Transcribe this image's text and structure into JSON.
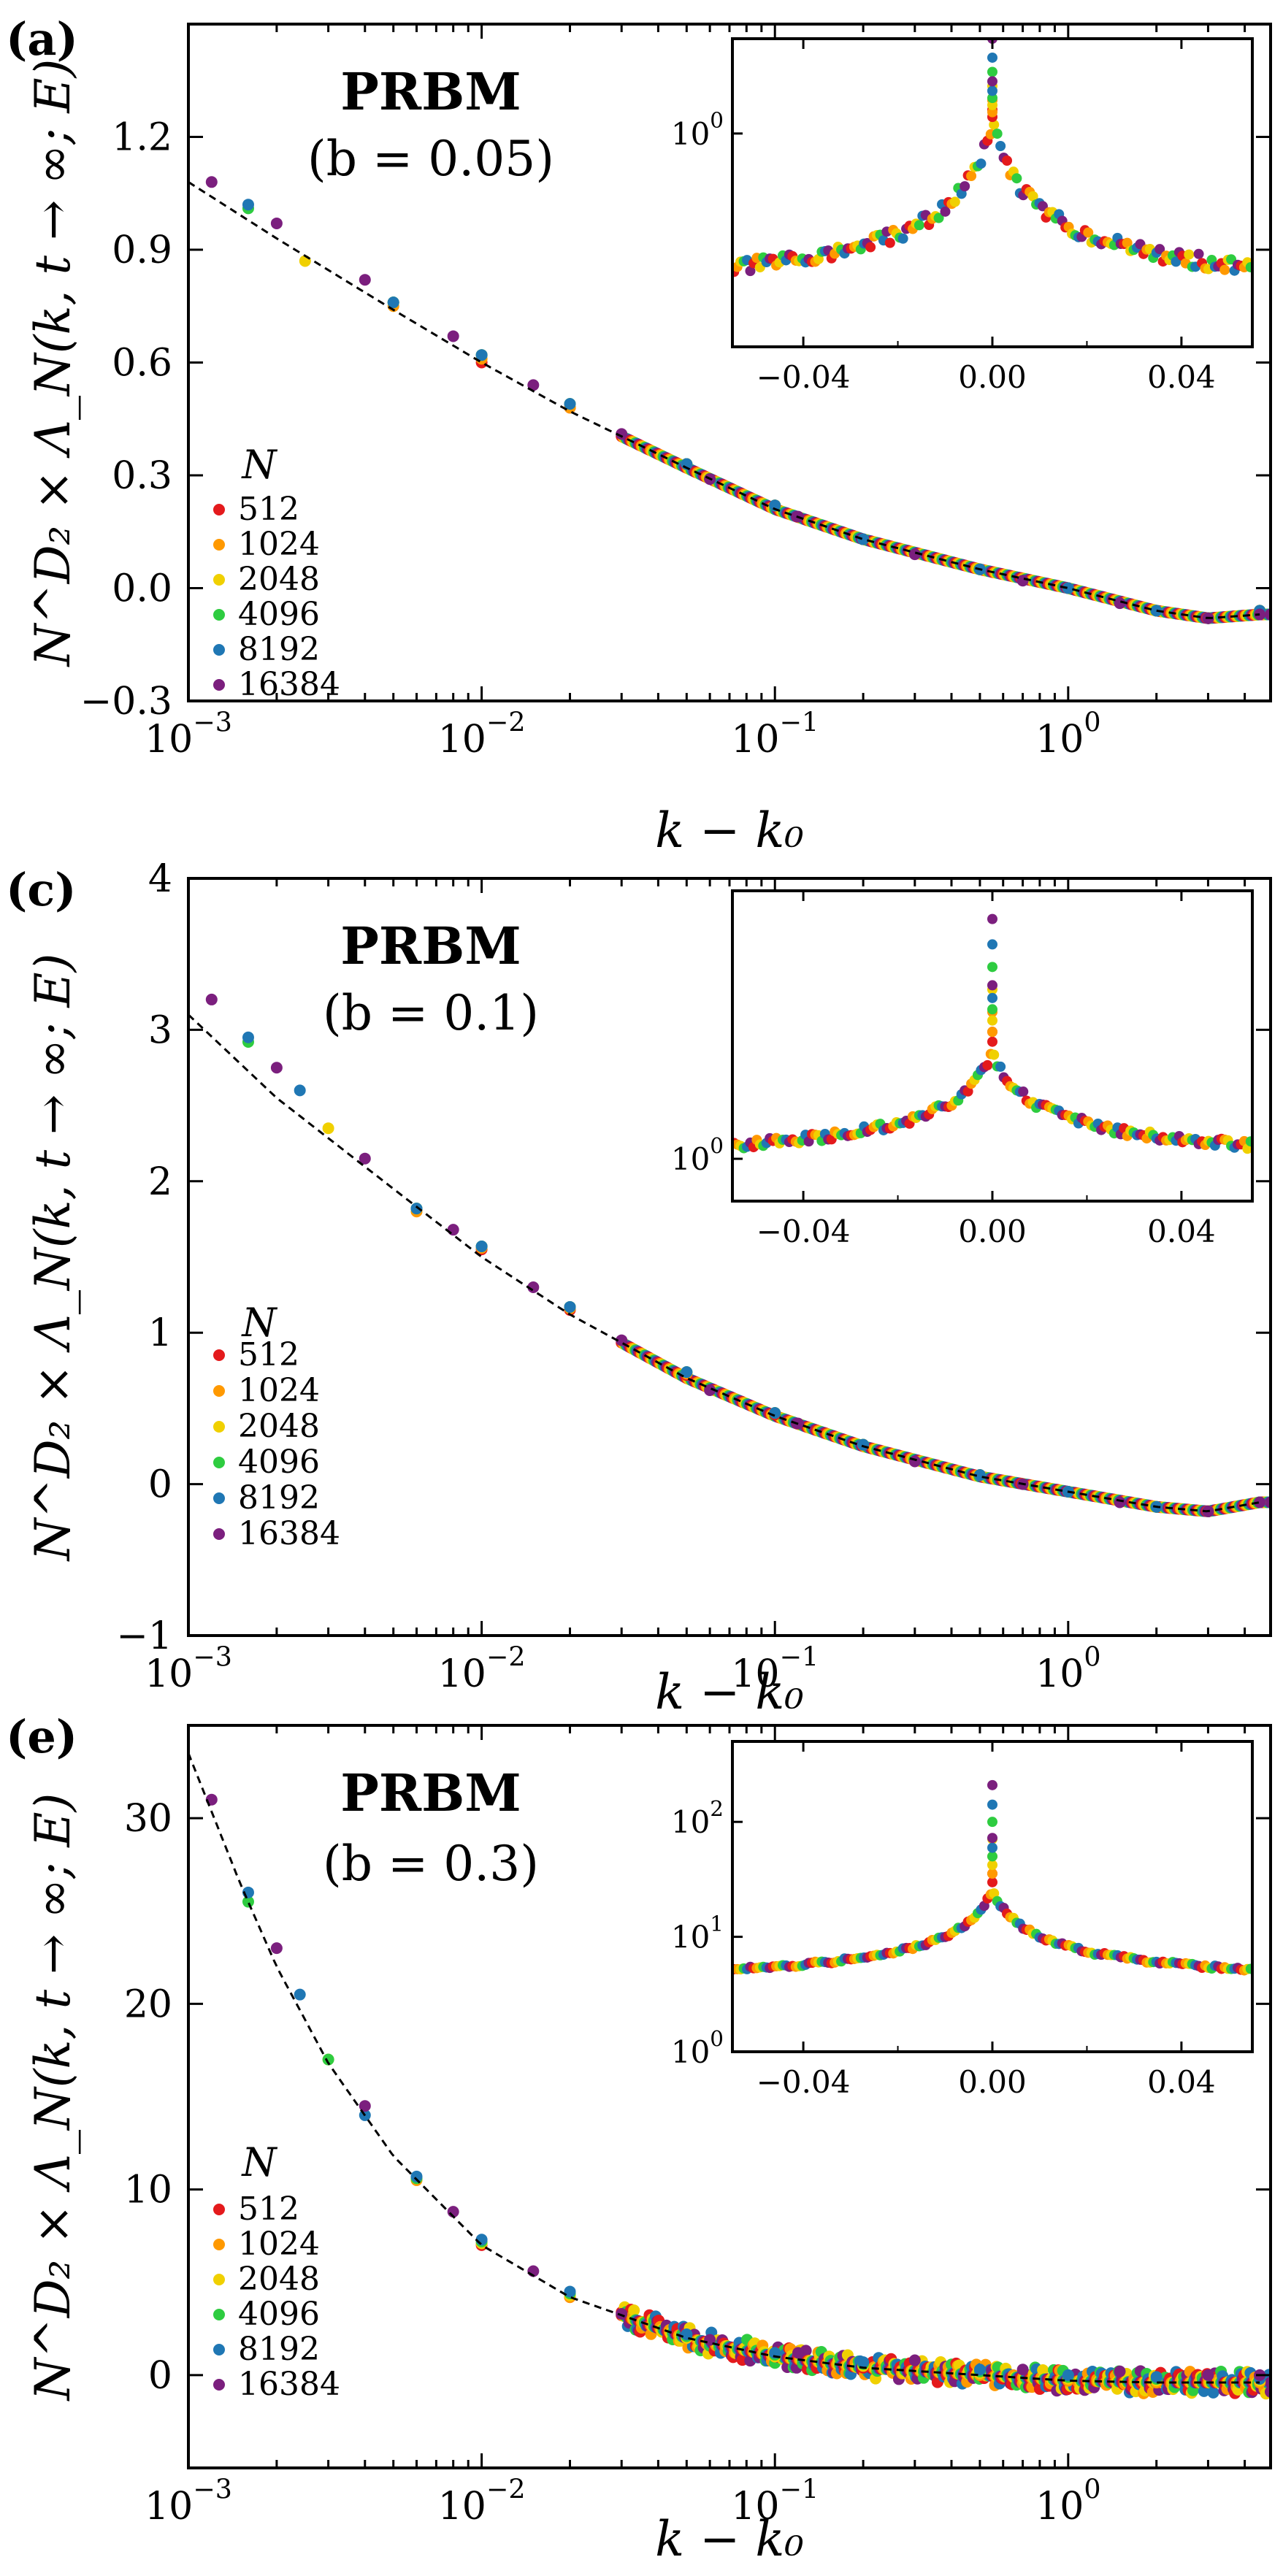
{
  "chart_data": [
    {
      "type": "scatter",
      "panel_label": "(a)",
      "title": "PRBM",
      "subtitle": "(b =  0.05)",
      "xlabel": "k − k₀",
      "ylabel": "N^D₂ × Λ_N(k, t → ∞; E)",
      "x_scale": "log",
      "xlim": [
        0.001,
        4.9
      ],
      "ylim": [
        -0.3,
        1.5
      ],
      "y_ticks": [
        "−0.3",
        "0.0",
        "0.3",
        "0.6",
        "0.9",
        "1.2"
      ],
      "y_tick_values": [
        -0.3,
        0.0,
        0.3,
        0.6,
        0.9,
        1.2
      ],
      "x_ticks": [
        "10",
        "10",
        "10",
        "10"
      ],
      "x_tick_exponents": [
        "−3",
        "−2",
        "−1",
        "0"
      ],
      "x_tick_values": [
        0.001,
        0.01,
        0.1,
        1
      ],
      "legend_title": "N",
      "legend_placement": "lower-left",
      "reference_curve": {
        "style": "dashed",
        "x": [
          0.001,
          0.002,
          0.005,
          0.01,
          0.02,
          0.05,
          0.1,
          0.2,
          0.5,
          1,
          2,
          3,
          4.5
        ],
        "y": [
          1.08,
          0.93,
          0.74,
          0.6,
          0.47,
          0.32,
          0.21,
          0.13,
          0.05,
          0.0,
          -0.06,
          -0.08,
          -0.07
        ]
      },
      "series": [
        {
          "name": "512",
          "color": "#e41a1c",
          "x": [
            0.01,
            0.02,
            0.05,
            0.1,
            0.2,
            0.5,
            1,
            2,
            3,
            4.5
          ],
          "y": [
            0.6,
            0.48,
            0.33,
            0.22,
            0.13,
            0.05,
            0.0,
            -0.06,
            -0.08,
            -0.06
          ]
        },
        {
          "name": "1024",
          "color": "#ff9900",
          "x": [
            0.005,
            0.01,
            0.02,
            0.05,
            0.1,
            0.2,
            0.5,
            1,
            2,
            3,
            4.5
          ],
          "y": [
            0.75,
            0.61,
            0.48,
            0.33,
            0.22,
            0.13,
            0.05,
            0.0,
            -0.06,
            -0.08,
            -0.06
          ]
        },
        {
          "name": "2048",
          "color": "#f0d000",
          "x": [
            0.0025,
            0.005,
            0.01,
            0.02,
            0.05,
            0.1,
            0.2,
            0.5,
            1,
            2,
            3,
            4.5
          ],
          "y": [
            0.87,
            0.76,
            0.62,
            0.49,
            0.33,
            0.22,
            0.13,
            0.05,
            0.0,
            -0.06,
            -0.08,
            -0.06
          ]
        },
        {
          "name": "4096",
          "color": "#2ecc40",
          "x": [
            0.0016,
            0.005,
            0.01,
            0.02,
            0.05,
            0.1,
            0.2,
            0.5,
            1,
            2,
            3,
            4.5
          ],
          "y": [
            1.01,
            0.76,
            0.62,
            0.49,
            0.33,
            0.22,
            0.13,
            0.05,
            0.0,
            -0.06,
            -0.08,
            -0.06
          ]
        },
        {
          "name": "8192",
          "color": "#1f77b4",
          "x": [
            0.0016,
            0.005,
            0.01,
            0.02,
            0.05,
            0.1,
            0.2,
            0.5,
            1,
            2,
            3,
            4.5
          ],
          "y": [
            1.02,
            0.76,
            0.62,
            0.49,
            0.33,
            0.22,
            0.13,
            0.05,
            0.0,
            -0.06,
            -0.08,
            -0.06
          ]
        },
        {
          "name": "16384",
          "color": "#7b1f7e",
          "x": [
            0.0012,
            0.002,
            0.004,
            0.008,
            0.015,
            0.03,
            0.06,
            0.12,
            0.3,
            0.7,
            1.5,
            3,
            4.5
          ],
          "y": [
            1.08,
            0.97,
            0.82,
            0.67,
            0.54,
            0.41,
            0.29,
            0.19,
            0.09,
            0.02,
            -0.04,
            -0.08,
            -0.07
          ]
        }
      ],
      "inset": {
        "type": "scatter",
        "y_scale": "log",
        "xlim": [
          -0.055,
          0.055
        ],
        "x_ticks": [
          "−0.04",
          "0.00",
          "0.04"
        ],
        "x_tick_values": [
          -0.04,
          0.0,
          0.04
        ],
        "y_ticks": [
          "10"
        ],
        "y_tick_exponents": [
          "0"
        ],
        "y_tick_values": [
          1
        ],
        "ylim_log10": [
          -0.45,
          0.2
        ],
        "baseline_log10": -0.4,
        "cusp_log10": 0.02,
        "cusp_width": 0.006,
        "peak_log10": [
          0.05,
          0.07,
          0.1,
          0.13,
          0.16,
          0.2
        ]
      }
    },
    {
      "type": "scatter",
      "panel_label": "(c)",
      "title": "PRBM",
      "subtitle": "(b =  0.1)",
      "xlabel": "k − k₀",
      "ylabel": "N^D₂ × Λ_N(k, t → ∞; E)",
      "x_scale": "log",
      "xlim": [
        0.001,
        4.9
      ],
      "ylim": [
        -1,
        4
      ],
      "y_ticks": [
        "−1",
        "0",
        "1",
        "2",
        "3",
        "4"
      ],
      "y_tick_values": [
        -1,
        0,
        1,
        2,
        3,
        4
      ],
      "x_ticks": [
        "10",
        "10",
        "10",
        "10"
      ],
      "x_tick_exponents": [
        "−3",
        "−2",
        "−1",
        "0"
      ],
      "x_tick_values": [
        0.001,
        0.01,
        0.1,
        1
      ],
      "legend_title": "N",
      "legend_placement": "lower-left",
      "reference_curve": {
        "style": "dashed",
        "x": [
          0.001,
          0.002,
          0.005,
          0.01,
          0.02,
          0.05,
          0.1,
          0.2,
          0.5,
          1,
          2,
          3,
          4.5
        ],
        "y": [
          3.1,
          2.55,
          1.95,
          1.5,
          1.12,
          0.7,
          0.45,
          0.25,
          0.05,
          -0.05,
          -0.15,
          -0.18,
          -0.12
        ]
      },
      "series": [
        {
          "name": "512",
          "color": "#e41a1c",
          "x": [
            0.01,
            0.02,
            0.05,
            0.1,
            0.2,
            0.5,
            1,
            2,
            3,
            4.5
          ],
          "y": [
            1.55,
            1.15,
            0.72,
            0.46,
            0.26,
            0.06,
            -0.05,
            -0.15,
            -0.18,
            -0.12
          ]
        },
        {
          "name": "1024",
          "color": "#ff9900",
          "x": [
            0.006,
            0.01,
            0.02,
            0.05,
            0.1,
            0.2,
            0.5,
            1,
            2,
            3,
            4.5
          ],
          "y": [
            1.8,
            1.56,
            1.16,
            0.73,
            0.47,
            0.26,
            0.06,
            -0.05,
            -0.15,
            -0.18,
            -0.12
          ]
        },
        {
          "name": "2048",
          "color": "#f0d000",
          "x": [
            0.003,
            0.006,
            0.01,
            0.02,
            0.05,
            0.1,
            0.2,
            0.5,
            1,
            2,
            3,
            4.5
          ],
          "y": [
            2.35,
            1.82,
            1.57,
            1.17,
            0.74,
            0.47,
            0.26,
            0.06,
            -0.05,
            -0.15,
            -0.18,
            -0.12
          ]
        },
        {
          "name": "4096",
          "color": "#2ecc40",
          "x": [
            0.0016,
            0.006,
            0.01,
            0.02,
            0.05,
            0.1,
            0.2,
            0.5,
            1,
            2,
            3,
            4.5
          ],
          "y": [
            2.92,
            1.82,
            1.57,
            1.17,
            0.74,
            0.47,
            0.26,
            0.06,
            -0.05,
            -0.15,
            -0.18,
            -0.12
          ]
        },
        {
          "name": "8192",
          "color": "#1f77b4",
          "x": [
            0.0016,
            0.0024,
            0.006,
            0.01,
            0.02,
            0.05,
            0.1,
            0.2,
            0.5,
            1,
            2,
            3,
            4.5
          ],
          "y": [
            2.95,
            2.6,
            1.82,
            1.57,
            1.17,
            0.74,
            0.47,
            0.26,
            0.06,
            -0.05,
            -0.15,
            -0.18,
            -0.12
          ]
        },
        {
          "name": "16384",
          "color": "#7b1f7e",
          "x": [
            0.0012,
            0.002,
            0.004,
            0.008,
            0.015,
            0.03,
            0.06,
            0.12,
            0.3,
            0.7,
            1.5,
            3,
            4.5
          ],
          "y": [
            3.2,
            2.75,
            2.15,
            1.68,
            1.3,
            0.95,
            0.62,
            0.4,
            0.15,
            0.0,
            -0.12,
            -0.18,
            -0.12
          ]
        }
      ],
      "inset": {
        "type": "scatter",
        "y_scale": "log",
        "xlim": [
          -0.055,
          0.055
        ],
        "x_ticks": [
          "−0.04",
          "0.00",
          "0.04"
        ],
        "x_tick_values": [
          -0.04,
          0.0,
          0.04
        ],
        "y_ticks": [
          "10"
        ],
        "y_tick_exponents": [
          "0"
        ],
        "y_tick_values": [
          1
        ],
        "ylim_log10": [
          -0.15,
          0.95
        ],
        "baseline_log10": -0.08,
        "cusp_log10": 0.38,
        "cusp_width": 0.006,
        "peak_log10": [
          0.45,
          0.52,
          0.6,
          0.68,
          0.76,
          0.85
        ]
      }
    },
    {
      "type": "scatter",
      "panel_label": "(e)",
      "title": "PRBM",
      "subtitle": "(b =  0.3)",
      "xlabel": "k − k₀",
      "ylabel": "N^D₂ × Λ_N(k, t → ∞; E)",
      "x_scale": "log",
      "xlim": [
        0.001,
        4.9
      ],
      "ylim": [
        -5,
        35
      ],
      "y_ticks": [
        "0",
        "10",
        "20",
        "30"
      ],
      "y_tick_values": [
        0,
        10,
        20,
        30
      ],
      "x_ticks": [
        "10",
        "10",
        "10",
        "10"
      ],
      "x_tick_exponents": [
        "−3",
        "−2",
        "−1",
        "0"
      ],
      "x_tick_values": [
        0.001,
        0.01,
        0.1,
        1
      ],
      "legend_title": "N",
      "legend_placement": "lower-left",
      "reference_curve": {
        "style": "dashed",
        "x": [
          0.001,
          0.0015,
          0.002,
          0.003,
          0.005,
          0.01,
          0.02,
          0.05,
          0.1,
          0.2,
          0.5,
          1,
          2,
          4.5
        ],
        "y": [
          33.5,
          26.5,
          22.0,
          16.8,
          11.8,
          7.0,
          4.2,
          2.0,
          1.0,
          0.4,
          0.0,
          -0.3,
          -0.4,
          -0.4
        ]
      },
      "series": [
        {
          "name": "512",
          "color": "#e41a1c",
          "x": [
            0.01,
            0.02,
            0.05,
            0.1,
            0.2,
            0.5,
            1,
            2,
            4.5
          ],
          "y": [
            7.0,
            4.2,
            2.0,
            1.0,
            0.4,
            0.0,
            -0.3,
            -0.4,
            -0.4
          ]
        },
        {
          "name": "1024",
          "color": "#ff9900",
          "x": [
            0.006,
            0.01,
            0.02,
            0.05,
            0.1,
            0.2,
            0.5,
            1,
            2,
            4.5
          ],
          "y": [
            10.5,
            7.1,
            4.2,
            2.0,
            1.0,
            0.5,
            0.0,
            -0.3,
            -0.4,
            -0.4
          ]
        },
        {
          "name": "2048",
          "color": "#f0d000",
          "x": [
            0.003,
            0.006,
            0.01,
            0.02,
            0.05,
            0.1,
            0.2,
            0.5,
            1,
            2,
            4.5
          ],
          "y": [
            17.0,
            10.6,
            7.1,
            4.3,
            2.0,
            1.0,
            0.5,
            0.1,
            -0.2,
            -0.3,
            -0.3
          ]
        },
        {
          "name": "4096",
          "color": "#2ecc40",
          "x": [
            0.0016,
            0.003,
            0.006,
            0.01,
            0.02,
            0.05,
            0.1,
            0.2,
            0.5,
            1,
            2,
            4.5
          ],
          "y": [
            25.5,
            17.0,
            10.6,
            7.2,
            4.4,
            2.1,
            1.1,
            0.6,
            0.2,
            -0.1,
            -0.2,
            -0.2
          ]
        },
        {
          "name": "8192",
          "color": "#1f77b4",
          "x": [
            0.0016,
            0.0024,
            0.004,
            0.006,
            0.01,
            0.02,
            0.05,
            0.1,
            0.2,
            0.5,
            1,
            2,
            4.5
          ],
          "y": [
            26.0,
            20.5,
            14.0,
            10.7,
            7.3,
            4.5,
            2.2,
            1.2,
            0.7,
            0.3,
            0.0,
            -0.1,
            -0.2
          ]
        },
        {
          "name": "16384",
          "color": "#7b1f7e",
          "x": [
            0.0012,
            0.002,
            0.004,
            0.008,
            0.015,
            0.03,
            0.06,
            0.12,
            0.3,
            0.7,
            1.5,
            3,
            4.5
          ],
          "y": [
            31.0,
            23.0,
            14.5,
            8.8,
            5.6,
            3.3,
            1.9,
            1.2,
            0.8,
            0.3,
            0.2,
            0.0,
            0.0
          ]
        }
      ],
      "inset": {
        "type": "scatter",
        "y_scale": "log",
        "xlim": [
          -0.055,
          0.055
        ],
        "x_ticks": [
          "−0.04",
          "0.00",
          "0.04"
        ],
        "x_tick_values": [
          -0.04,
          0.0,
          0.04
        ],
        "y_ticks": [
          "10",
          "10",
          "10"
        ],
        "y_tick_exponents": [
          "0",
          "1",
          "2"
        ],
        "y_tick_values": [
          1,
          10,
          100
        ],
        "ylim_log10": [
          0.0,
          2.7
        ],
        "baseline_log10": 0.45,
        "cusp_log10": 1.4,
        "cusp_width": 0.006,
        "peak_log10": [
          1.55,
          1.7,
          1.85,
          2.0,
          2.15,
          2.32
        ]
      }
    }
  ]
}
